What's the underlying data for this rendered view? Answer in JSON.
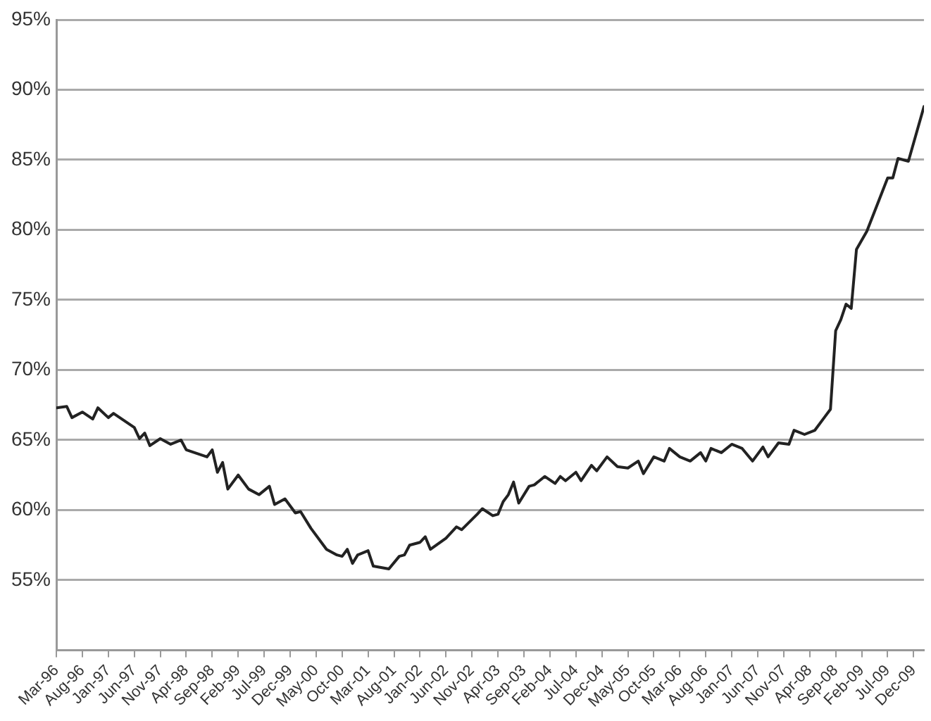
{
  "chart_data": {
    "type": "line",
    "grid": "y",
    "legend": false,
    "marker": "none",
    "line_style": "solid",
    "x": [
      "1996-03",
      "1996-05",
      "1996-06",
      "1996-08",
      "1996-10",
      "1996-11",
      "1997-01",
      "1997-02",
      "1997-06",
      "1997-07",
      "1997-08",
      "1997-09",
      "1997-11",
      "1998-01",
      "1998-03",
      "1998-04",
      "1998-08",
      "1998-09",
      "1998-10",
      "1998-11",
      "1998-12",
      "1999-02",
      "1999-04",
      "1999-06",
      "1999-08",
      "1999-09",
      "1999-11",
      "2000-01",
      "2000-02",
      "2000-04",
      "2000-07",
      "2000-09",
      "2000-10",
      "2000-11",
      "2000-12",
      "2001-01",
      "2001-03",
      "2001-04",
      "2001-07",
      "2001-09",
      "2001-10",
      "2001-11",
      "2002-01",
      "2002-02",
      "2002-03",
      "2002-06",
      "2002-08",
      "2002-09",
      "2002-12",
      "2003-01",
      "2003-03",
      "2003-04",
      "2003-05",
      "2003-06",
      "2003-07",
      "2003-08",
      "2003-10",
      "2003-11",
      "2004-01",
      "2004-03",
      "2004-04",
      "2004-05",
      "2004-07",
      "2004-08",
      "2004-10",
      "2004-11",
      "2005-01",
      "2005-03",
      "2005-05",
      "2005-07",
      "2005-08",
      "2005-10",
      "2005-12",
      "2006-01",
      "2006-03",
      "2006-05",
      "2006-07",
      "2006-08",
      "2006-09",
      "2006-11",
      "2007-01",
      "2007-03",
      "2007-05",
      "2007-07",
      "2007-08",
      "2007-10",
      "2007-12",
      "2008-01",
      "2008-03",
      "2008-05",
      "2008-07",
      "2008-08",
      "2008-09",
      "2008-10",
      "2008-11",
      "2008-12",
      "2009-01",
      "2009-03",
      "2009-05",
      "2009-07",
      "2009-08",
      "2009-09",
      "2009-11",
      "2010-02"
    ],
    "series": [
      {
        "color": "#222222",
        "values": [
          67.3,
          67.4,
          66.6,
          67.0,
          66.5,
          67.3,
          66.6,
          66.9,
          65.9,
          65.1,
          65.5,
          64.6,
          65.1,
          64.7,
          65.0,
          64.3,
          63.8,
          64.3,
          62.7,
          63.4,
          61.5,
          62.5,
          61.5,
          61.1,
          61.7,
          60.4,
          60.8,
          59.8,
          59.9,
          58.7,
          57.2,
          56.8,
          56.7,
          57.2,
          56.2,
          56.8,
          57.1,
          56.0,
          55.8,
          56.7,
          56.8,
          57.5,
          57.7,
          58.1,
          57.2,
          58.0,
          58.8,
          58.6,
          59.7,
          60.1,
          59.6,
          59.7,
          60.6,
          61.1,
          62.0,
          60.5,
          61.7,
          61.8,
          62.4,
          61.9,
          62.4,
          62.1,
          62.7,
          62.1,
          63.2,
          62.8,
          63.8,
          63.1,
          63.0,
          63.5,
          62.6,
          63.8,
          63.5,
          64.4,
          63.8,
          63.5,
          64.1,
          63.5,
          64.4,
          64.1,
          64.7,
          64.4,
          63.5,
          64.5,
          63.8,
          64.8,
          64.7,
          65.7,
          65.4,
          65.7,
          66.7,
          67.2,
          72.8,
          73.6,
          74.7,
          74.4,
          78.6,
          79.9,
          81.8,
          83.7,
          83.7,
          85.1,
          84.9,
          88.8
        ]
      }
    ],
    "xlim": [
      "1996-03",
      "2010-02"
    ],
    "xticks": [
      {
        "value": "1996-03",
        "label": "Mar-96"
      },
      {
        "value": "1996-08",
        "label": "Aug-96"
      },
      {
        "value": "1997-01",
        "label": "Jan-97"
      },
      {
        "value": "1997-06",
        "label": "Jun-97"
      },
      {
        "value": "1997-11",
        "label": "Nov-97"
      },
      {
        "value": "1998-04",
        "label": "Apr-98"
      },
      {
        "value": "1998-09",
        "label": "Sep-98"
      },
      {
        "value": "1999-02",
        "label": "Feb-99"
      },
      {
        "value": "1999-07",
        "label": "Jul-99"
      },
      {
        "value": "1999-12",
        "label": "Dec-99"
      },
      {
        "value": "2000-05",
        "label": "May-00"
      },
      {
        "value": "2000-10",
        "label": "Oct-00"
      },
      {
        "value": "2001-03",
        "label": "Mar-01"
      },
      {
        "value": "2001-08",
        "label": "Aug-01"
      },
      {
        "value": "2002-01",
        "label": "Jan-02"
      },
      {
        "value": "2002-06",
        "label": "Jun-02"
      },
      {
        "value": "2002-11",
        "label": "Nov-02"
      },
      {
        "value": "2003-04",
        "label": "Apr-03"
      },
      {
        "value": "2003-09",
        "label": "Sep-03"
      },
      {
        "value": "2004-02",
        "label": "Feb-04"
      },
      {
        "value": "2004-07",
        "label": "Jul-04"
      },
      {
        "value": "2004-12",
        "label": "Dec-04"
      },
      {
        "value": "2005-05",
        "label": "May-05"
      },
      {
        "value": "2005-10",
        "label": "Oct-05"
      },
      {
        "value": "2006-03",
        "label": "Mar-06"
      },
      {
        "value": "2006-08",
        "label": "Aug-06"
      },
      {
        "value": "2007-01",
        "label": "Jan-07"
      },
      {
        "value": "2007-06",
        "label": "Jun-07"
      },
      {
        "value": "2007-11",
        "label": "Nov-07"
      },
      {
        "value": "2008-04",
        "label": "Apr-08"
      },
      {
        "value": "2008-09",
        "label": "Sep-08"
      },
      {
        "value": "2009-02",
        "label": "Feb-09"
      },
      {
        "value": "2009-07",
        "label": "Jul-09"
      },
      {
        "value": "2009-12",
        "label": "Dec-09"
      }
    ],
    "ylim": [
      50,
      95
    ],
    "yticks": [
      {
        "value": 50,
        "label": null
      },
      {
        "value": 55,
        "label": "55%"
      },
      {
        "value": 60,
        "label": "60%"
      },
      {
        "value": 65,
        "label": "65%"
      },
      {
        "value": 70,
        "label": "70%"
      },
      {
        "value": 75,
        "label": "75%"
      },
      {
        "value": 80,
        "label": "80%"
      },
      {
        "value": 85,
        "label": "85%"
      },
      {
        "value": 90,
        "label": "90%"
      },
      {
        "value": 95,
        "label": "95%"
      }
    ]
  }
}
